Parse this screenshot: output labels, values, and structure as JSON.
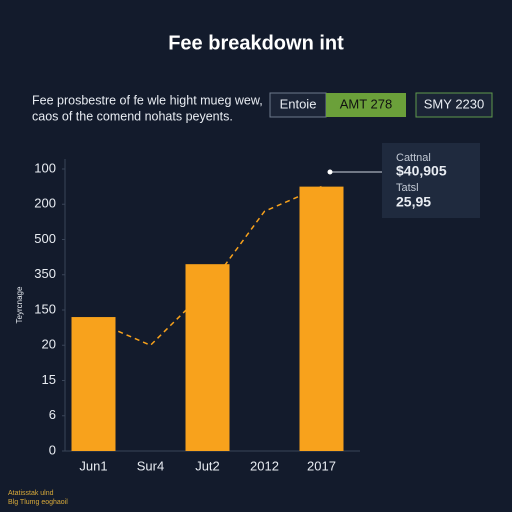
{
  "chart_data": {
    "type": "bar",
    "title": "Fee breakdown int",
    "subtitle": [
      "Fee prosbestre of fe wle hight mueg wew,",
      "caos of the comend nohats peyents."
    ],
    "buttons": [
      "Entoie",
      "AMT 278",
      "SMY 2230"
    ],
    "tooltip": [
      "Cattnal",
      "$40,905",
      "Tatsl",
      "25,95"
    ],
    "ylabel": "Teyrcnage",
    "footer": [
      "Atatisstak ulnd",
      "Blg Tlumg eoghaoil"
    ],
    "categories": [
      "Jun1",
      "Sur4",
      "Jut2",
      "2012",
      "2017"
    ],
    "values": [
      3.8,
      null,
      5.3,
      null,
      7.5
    ],
    "color": "#f8a21c",
    "line_values": [
      3.7,
      3.0,
      4.6,
      6.8,
      7.5
    ],
    "line_color": "#f8a21c",
    "ylim": [
      0,
      8
    ],
    "yticks": [
      {
        "value": 0,
        "label": "0"
      },
      {
        "value": 1,
        "label": "6"
      },
      {
        "value": 2,
        "label": "15"
      },
      {
        "value": 3,
        "label": "20"
      },
      {
        "value": 4,
        "label": "150"
      },
      {
        "value": 5,
        "label": "350"
      },
      {
        "value": 6,
        "label": "500"
      },
      {
        "value": 7,
        "label": "200"
      },
      {
        "value": 8,
        "label": "100"
      }
    ]
  }
}
